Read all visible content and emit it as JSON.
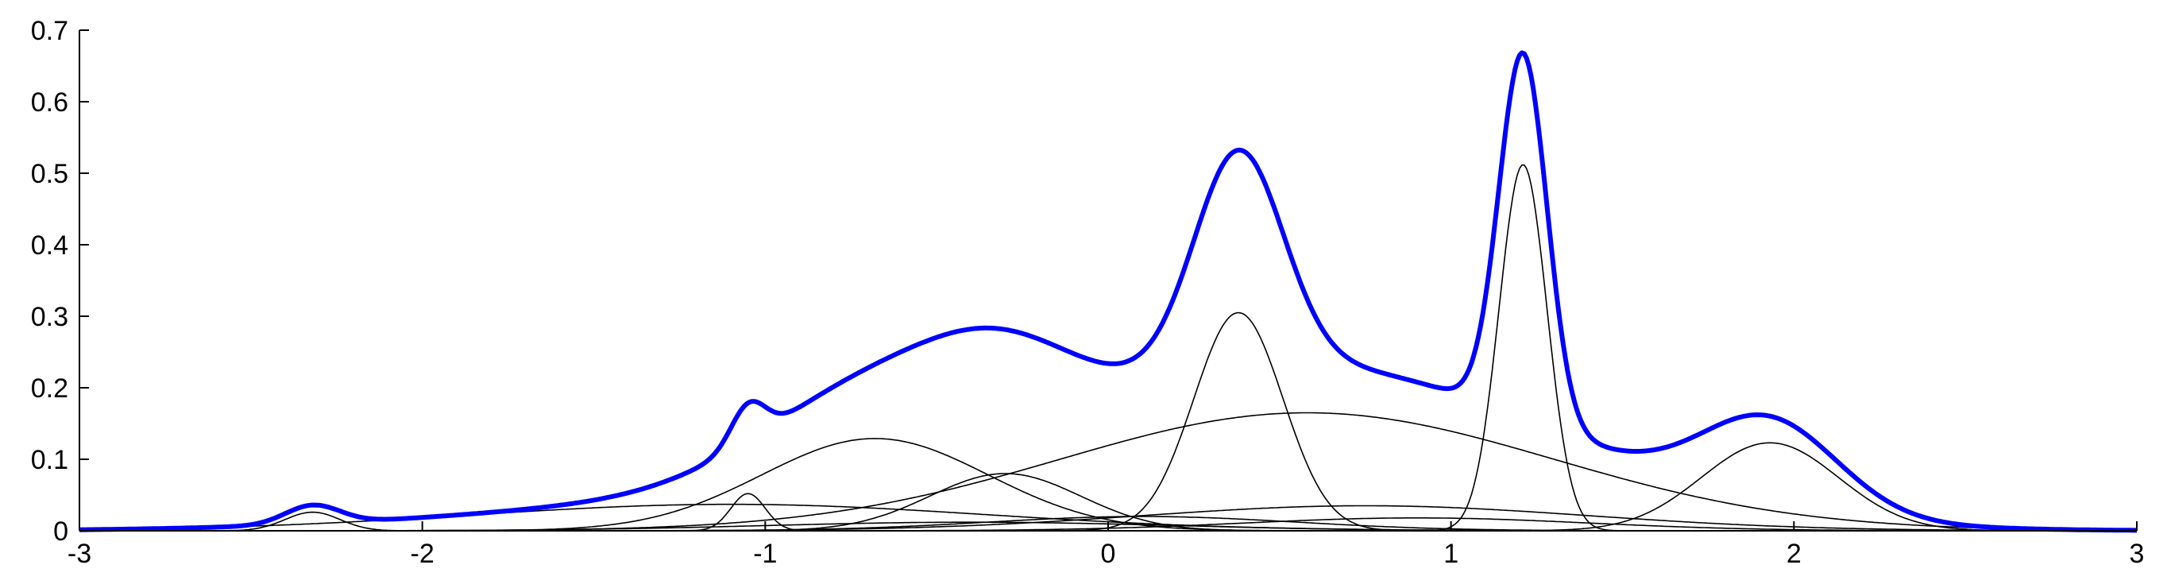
{
  "chart_data": {
    "type": "line",
    "title": "",
    "xlabel": "",
    "ylabel": "",
    "xlim": [
      -3,
      3
    ],
    "ylim": [
      0,
      0.7
    ],
    "grid": false,
    "legend": "none",
    "xticks": [
      -3,
      -2,
      -1,
      0,
      1,
      2,
      3
    ],
    "xtick_labels": [
      "-3",
      "-2",
      "-1",
      "0",
      "1",
      "2",
      "3"
    ],
    "yticks": [
      0,
      0.1,
      0.2,
      0.3,
      0.4,
      0.5,
      0.6,
      0.7
    ],
    "ytick_labels": [
      "0",
      "0.1",
      "0.2",
      "0.3",
      "0.4",
      "0.5",
      "0.6",
      "0.7"
    ],
    "colors": {
      "total": "#0000ff",
      "components": "#000000"
    },
    "components": [
      {
        "peak_x": -2.32,
        "peak_y": 0.026,
        "sigma": 0.08
      },
      {
        "peak_x": -1.05,
        "peak_y": 0.052,
        "sigma": 0.05
      },
      {
        "peak_x": -0.68,
        "peak_y": 0.129,
        "sigma": 0.33
      },
      {
        "peak_x": -0.3,
        "peak_y": 0.08,
        "sigma": 0.22
      },
      {
        "peak_x": 0.38,
        "peak_y": 0.305,
        "sigma": 0.13
      },
      {
        "peak_x": 0.58,
        "peak_y": 0.165,
        "sigma": 0.72
      },
      {
        "peak_x": 1.21,
        "peak_y": 0.512,
        "sigma": 0.07
      },
      {
        "peak_x": 1.93,
        "peak_y": 0.123,
        "sigma": 0.2
      },
      {
        "peak_x": -1.1,
        "peak_y": 0.037,
        "sigma": 0.75
      },
      {
        "peak_x": 0.75,
        "peak_y": 0.035,
        "sigma": 0.65
      },
      {
        "peak_x": 0.1,
        "peak_y": 0.02,
        "sigma": 0.45
      },
      {
        "peak_x": -0.4,
        "peak_y": 0.012,
        "sigma": 0.6
      },
      {
        "peak_x": 0.9,
        "peak_y": 0.018,
        "sigma": 0.5
      }
    ],
    "total_peaks": [
      {
        "x": -2.32,
        "y": 0.04
      },
      {
        "x": -1.05,
        "y": 0.205
      },
      {
        "x": -0.35,
        "y": 0.32
      },
      {
        "x": 0.05,
        "y": 0.27
      },
      {
        "x": 0.4,
        "y": 0.56
      },
      {
        "x": 1.0,
        "y": 0.222
      },
      {
        "x": 1.21,
        "y": 0.675
      },
      {
        "x": 1.55,
        "y": 0.115
      },
      {
        "x": 1.9,
        "y": 0.16
      }
    ]
  }
}
